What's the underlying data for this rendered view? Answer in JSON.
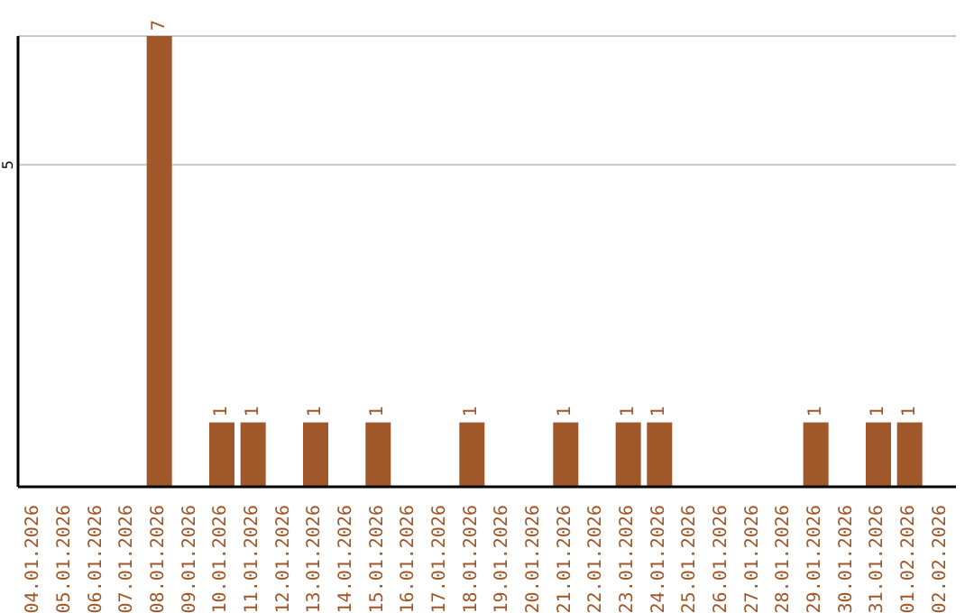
{
  "chart_data": {
    "type": "bar",
    "categories": [
      "04.01.2026",
      "05.01.2026",
      "06.01.2026",
      "07.01.2026",
      "08.01.2026",
      "09.01.2026",
      "10.01.2026",
      "11.01.2026",
      "12.01.2026",
      "13.01.2026",
      "14.01.2026",
      "15.01.2026",
      "16.01.2026",
      "17.01.2026",
      "18.01.2026",
      "19.01.2026",
      "20.01.2026",
      "21.01.2026",
      "22.01.2026",
      "23.01.2026",
      "24.01.2026",
      "25.01.2026",
      "26.01.2026",
      "27.01.2026",
      "28.01.2026",
      "29.01.2026",
      "30.01.2026",
      "31.01.2026",
      "01.02.2026",
      "02.02.2026"
    ],
    "values": [
      0,
      0,
      0,
      0,
      7,
      0,
      1,
      1,
      0,
      1,
      0,
      1,
      0,
      0,
      1,
      0,
      0,
      1,
      0,
      1,
      1,
      0,
      0,
      0,
      0,
      1,
      0,
      1,
      1,
      0
    ],
    "value_labels": [
      null,
      null,
      null,
      null,
      "7",
      null,
      "1",
      "1",
      null,
      "1",
      null,
      "1",
      null,
      null,
      "1",
      null,
      null,
      "1",
      null,
      "1",
      "1",
      null,
      null,
      null,
      null,
      "1",
      null,
      "1",
      "1",
      null
    ],
    "color": "#a0582a",
    "ylim": [
      0,
      7
    ],
    "yticks": [
      5
    ],
    "grid": "y"
  }
}
